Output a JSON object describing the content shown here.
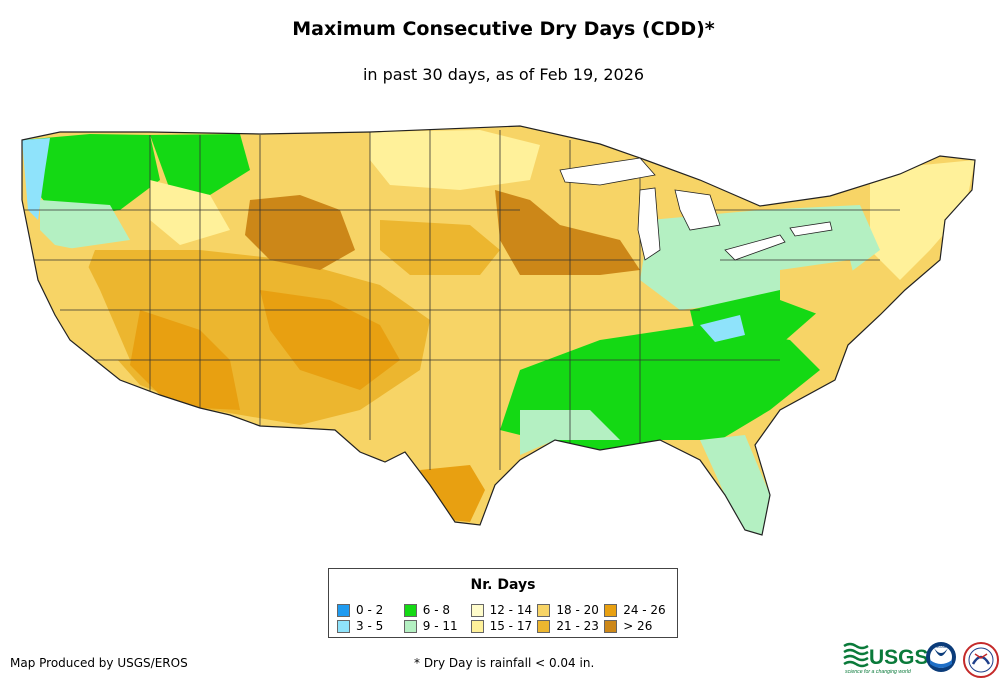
{
  "title": "Maximum Consecutive Dry Days (CDD)*",
  "subtitle": "in past 30 days, as of Feb 19, 2026",
  "legend": {
    "title": "Nr. Days",
    "items": [
      {
        "label": "0 - 2",
        "color": "#1f9bf0"
      },
      {
        "label": "3 - 5",
        "color": "#8fe3fb"
      },
      {
        "label": "6 - 8",
        "color": "#14d914"
      },
      {
        "label": "9 - 11",
        "color": "#b4f0c2"
      },
      {
        "label": "12 - 14",
        "color": "#fffccb"
      },
      {
        "label": "15 - 17",
        "color": "#fff19a"
      },
      {
        "label": "18 - 20",
        "color": "#f7d466"
      },
      {
        "label": "21 - 23",
        "color": "#ecb62f"
      },
      {
        "label": "24 - 26",
        "color": "#e8a011"
      },
      {
        "label": "> 26",
        "color": "#cc8718"
      }
    ]
  },
  "credit": "Map Produced by USGS/EROS",
  "footnote": "* Dry Day is rainfall < 0.04 in.",
  "logos": {
    "usgs": "USGS",
    "usgs_tagline": "science for a changing world",
    "noaa": "NOAA"
  }
}
